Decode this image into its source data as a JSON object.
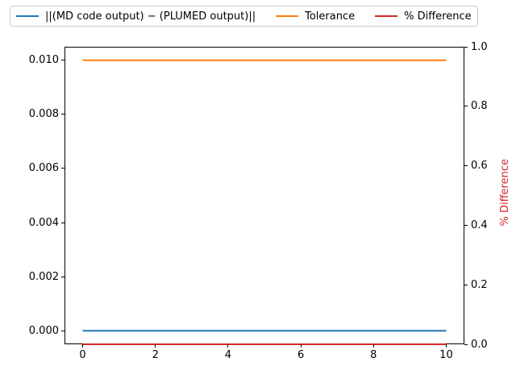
{
  "chart_data": {
    "type": "line",
    "title": "",
    "xlabel": "",
    "background": "#ffffff",
    "spine_color": "#000000",
    "grid": false,
    "legend_position": "top",
    "legend_border_color": "#cccccc",
    "x": [
      0,
      1,
      2,
      3,
      4,
      5,
      6,
      7,
      8,
      9,
      10
    ],
    "series": [
      {
        "key": "md-plumed-diff-norm",
        "name": "||(MD code output) − (PLUMED output)||",
        "axis": "left",
        "color": "#1f77b4",
        "values": [
          0,
          0,
          0,
          0,
          0,
          0,
          0,
          0,
          0,
          0,
          0
        ]
      },
      {
        "key": "tolerance",
        "name": "Tolerance",
        "axis": "left",
        "color": "#ff7f0e",
        "values": [
          0.01,
          0.01,
          0.01,
          0.01,
          0.01,
          0.01,
          0.01,
          0.01,
          0.01,
          0.01,
          0.01
        ]
      },
      {
        "key": "percent-difference",
        "name": "% Difference",
        "axis": "right",
        "color": "#d62728",
        "values": [
          0,
          0,
          0,
          0,
          0,
          0,
          0,
          0,
          0,
          0,
          0
        ]
      }
    ],
    "x_axis": {
      "range": [
        -0.5,
        10.5
      ],
      "tick_values": [
        0,
        2,
        4,
        6,
        8,
        10
      ],
      "tick_labels": [
        "0",
        "2",
        "4",
        "6",
        "8",
        "10"
      ]
    },
    "left_axis": {
      "label": "",
      "range": [
        -0.0005,
        0.0105
      ],
      "tick_values": [
        0,
        0.002,
        0.004,
        0.006,
        0.008,
        0.01
      ],
      "tick_labels": [
        "0.000",
        "0.002",
        "0.004",
        "0.006",
        "0.008",
        "0.010"
      ]
    },
    "right_axis": {
      "label": "% Difference",
      "label_color": "#d62728",
      "range": [
        0,
        1
      ],
      "tick_values": [
        0,
        0.2,
        0.4,
        0.6,
        0.8,
        1
      ],
      "tick_labels": [
        "0.0",
        "0.2",
        "0.4",
        "0.6",
        "0.8",
        "1.0"
      ]
    }
  }
}
